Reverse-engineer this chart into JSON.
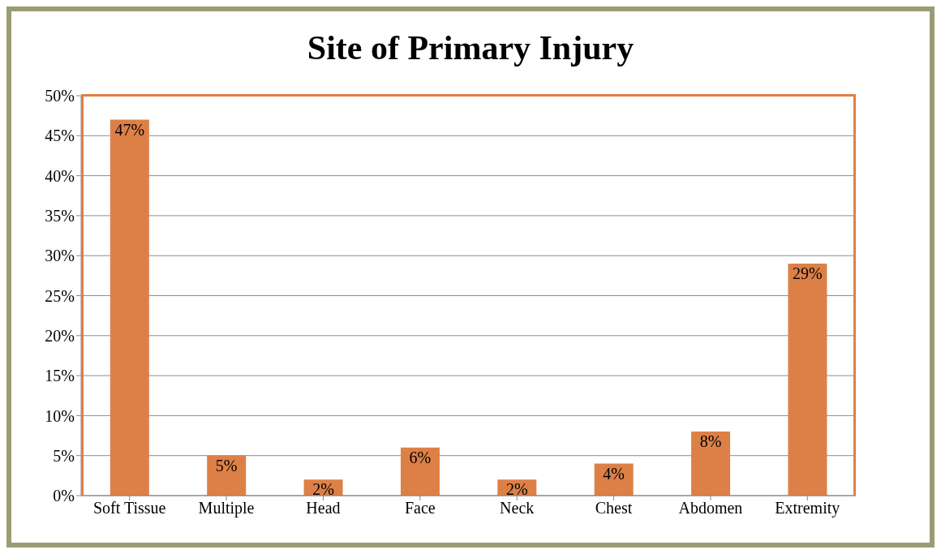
{
  "chart_data": {
    "type": "bar",
    "title": "Site of Primary Injury",
    "categories": [
      "Soft Tissue",
      "Multiple",
      "Head",
      "Face",
      "Neck",
      "Chest",
      "Abdomen",
      "Extremity"
    ],
    "values": [
      47,
      5,
      2,
      6,
      2,
      4,
      8,
      29
    ],
    "value_labels": [
      "47%",
      "5%",
      "2%",
      "6%",
      "2%",
      "4%",
      "8%",
      "29%"
    ],
    "color": "#dd8047",
    "ylim": [
      0,
      50
    ],
    "yticks": [
      {
        "value": 0,
        "label": "0%"
      },
      {
        "value": 5,
        "label": "5%"
      },
      {
        "value": 10,
        "label": "10%"
      },
      {
        "value": 15,
        "label": "15%"
      },
      {
        "value": 20,
        "label": "20%"
      },
      {
        "value": 25,
        "label": "25%"
      },
      {
        "value": 30,
        "label": "30%"
      },
      {
        "value": 35,
        "label": "35%"
      },
      {
        "value": 40,
        "label": "40%"
      },
      {
        "value": 45,
        "label": "45%"
      },
      {
        "value": 50,
        "label": "50%"
      }
    ],
    "grid": "y"
  }
}
